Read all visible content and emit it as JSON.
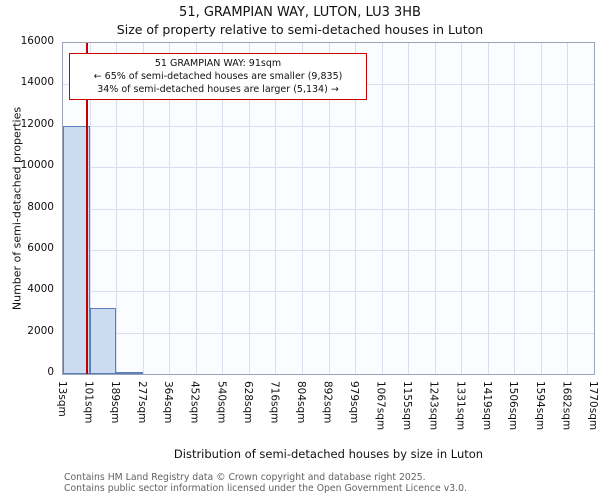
{
  "annotation": {
    "line1": "51 GRAMPIAN WAY: 91sqm",
    "line2": "← 65% of semi-detached houses are smaller (9,835)",
    "line3": "34% of semi-detached houses are larger (5,134) →"
  },
  "footer": {
    "line1": "Contains HM Land Registry data © Crown copyright and database right 2025.",
    "line2": "Contains public sector information licensed under the Open Government Licence v3.0."
  },
  "chart_data": {
    "type": "bar",
    "title": "51, GRAMPIAN WAY, LUTON, LU3 3HB",
    "subtitle": "Size of property relative to semi-detached houses in Luton",
    "xlabel": "Distribution of semi-detached houses by size in Luton",
    "ylabel": "Number of semi-detached properties",
    "x_tick_values": [
      13,
      101,
      189,
      277,
      364,
      452,
      540,
      628,
      716,
      804,
      892,
      979,
      1067,
      1155,
      1243,
      1331,
      1419,
      1506,
      1594,
      1682,
      1770
    ],
    "x_tick_labels": [
      "13sqm",
      "101sqm",
      "189sqm",
      "277sqm",
      "364sqm",
      "452sqm",
      "540sqm",
      "628sqm",
      "716sqm",
      "804sqm",
      "892sqm",
      "979sqm",
      "1067sqm",
      "1155sqm",
      "1243sqm",
      "1331sqm",
      "1419sqm",
      "1506sqm",
      "1594sqm",
      "1682sqm",
      "1770sqm"
    ],
    "y_ticks": [
      0,
      2000,
      4000,
      6000,
      8000,
      10000,
      12000,
      14000,
      16000
    ],
    "ylim": [
      0,
      16000
    ],
    "values": [
      12000,
      3200,
      110,
      0,
      0,
      0,
      0,
      0,
      0,
      0,
      0,
      0,
      0,
      0,
      0,
      0,
      0,
      0,
      0,
      0
    ],
    "marker": {
      "label": "51 GRAMPIAN WAY",
      "value": 91,
      "color": "#c00000"
    },
    "bar_fill": "#cddbf0",
    "bar_border": "#5b7fb9",
    "grid": true,
    "legend": "none"
  }
}
